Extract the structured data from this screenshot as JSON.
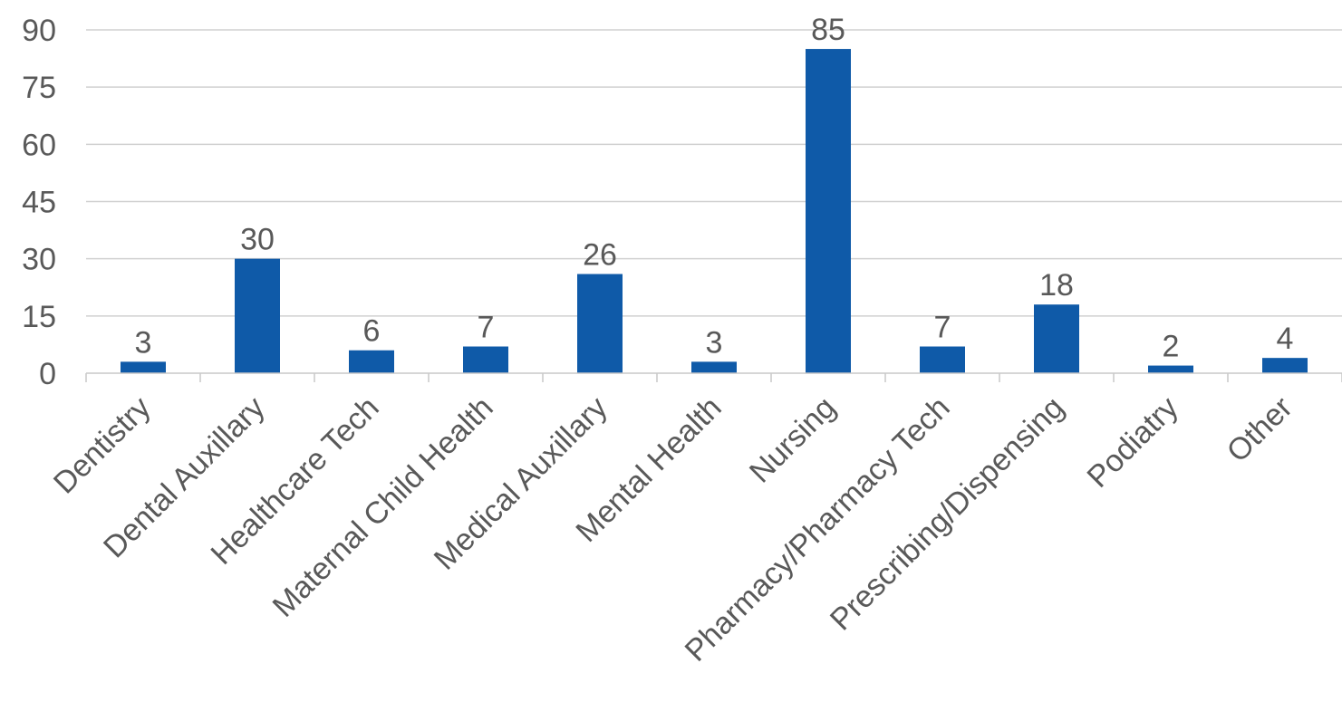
{
  "chart_data": {
    "type": "bar",
    "title": "",
    "xlabel": "",
    "ylabel": "",
    "categories": [
      "Dentistry",
      "Dental Auxillary",
      "Healthcare Tech",
      "Maternal Child Health",
      "Medical Auxillary",
      "Mental Health",
      "Nursing",
      "Pharmacy/Pharmacy Tech",
      "Prescribing/Dispensing",
      "Podiatry",
      "Other"
    ],
    "values": [
      3,
      30,
      6,
      7,
      26,
      3,
      85,
      7,
      18,
      2,
      4
    ],
    "ylim": [
      0,
      90
    ],
    "yticks": [
      "0",
      "15",
      "30",
      "45",
      "60",
      "75",
      "90"
    ],
    "grid": true,
    "legend": "none",
    "bar_color": "#0f5aa8",
    "data_labels": true
  }
}
